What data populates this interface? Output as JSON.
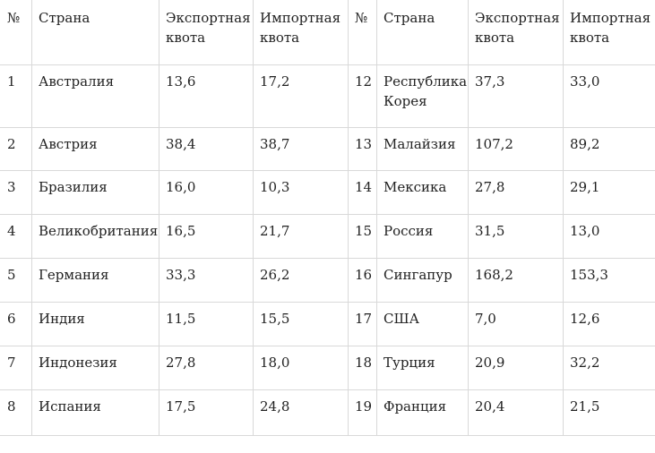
{
  "headers": [
    "№",
    "Страна",
    "Экспортная квота",
    "Импортная квота",
    "№",
    "Страна",
    "Экспортная квота",
    "Импортная квота"
  ],
  "header_lines": [
    [
      "№"
    ],
    [
      "Страна"
    ],
    [
      "Экспортная",
      "квота"
    ],
    [
      "Импортная",
      "квота"
    ],
    [
      "№"
    ],
    [
      "Страна"
    ],
    [
      "Экспортная",
      "квота"
    ],
    [
      "Импортная",
      "квота"
    ]
  ],
  "rows": [
    [
      [
        "1"
      ],
      [
        "Австралия"
      ],
      [
        "13,6"
      ],
      [
        "17,2"
      ],
      [
        "12"
      ],
      [
        "Республика",
        "Корея"
      ],
      [
        "37,3"
      ],
      [
        "33,0"
      ]
    ],
    [
      [
        "2"
      ],
      [
        "Австрия"
      ],
      [
        "38,4"
      ],
      [
        "38,7"
      ],
      [
        "13"
      ],
      [
        "Малайзия"
      ],
      [
        "107,2"
      ],
      [
        "89,2"
      ]
    ],
    [
      [
        "3"
      ],
      [
        "Бразилия"
      ],
      [
        "16,0"
      ],
      [
        "10,3"
      ],
      [
        "14"
      ],
      [
        "Мексика"
      ],
      [
        "27,8"
      ],
      [
        "29,1"
      ]
    ],
    [
      [
        "4"
      ],
      [
        "Великобритания"
      ],
      [
        "16,5"
      ],
      [
        "21,7"
      ],
      [
        "15"
      ],
      [
        "Россия"
      ],
      [
        "31,5"
      ],
      [
        "13,0"
      ]
    ],
    [
      [
        "5"
      ],
      [
        "Германия"
      ],
      [
        "33,3"
      ],
      [
        "26,2"
      ],
      [
        "16"
      ],
      [
        "Сингапур"
      ],
      [
        "168,2"
      ],
      [
        "153,3"
      ]
    ],
    [
      [
        "6"
      ],
      [
        "Индия"
      ],
      [
        "11,5"
      ],
      [
        "15,5"
      ],
      [
        "17"
      ],
      [
        "США"
      ],
      [
        "7,0"
      ],
      [
        "12,6"
      ]
    ],
    [
      [
        "7"
      ],
      [
        "Индонезия"
      ],
      [
        "27,8"
      ],
      [
        "18,0"
      ],
      [
        "18"
      ],
      [
        "Турция"
      ],
      [
        "20,9"
      ],
      [
        "32,2"
      ]
    ],
    [
      [
        "8"
      ],
      [
        "Испания"
      ],
      [
        "17,5"
      ],
      [
        "24,8"
      ],
      [
        "19"
      ],
      [
        "Франция"
      ],
      [
        "20,4"
      ],
      [
        "21,5"
      ]
    ]
  ]
}
